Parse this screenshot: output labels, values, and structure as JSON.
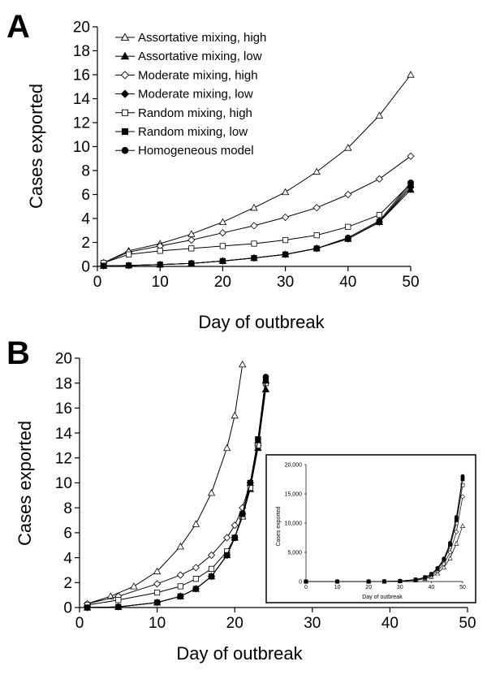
{
  "chart_data": [
    {
      "panel": "A",
      "type": "line",
      "xlabel": "Day of outbreak",
      "ylabel": "Cases exported",
      "xlim": [
        0,
        50
      ],
      "ylim": [
        0,
        20
      ],
      "xticks": [
        "0",
        "10",
        "20",
        "30",
        "40",
        "50"
      ],
      "yticks": [
        "0",
        "2",
        "4",
        "6",
        "8",
        "10",
        "12",
        "14",
        "16",
        "18",
        "20"
      ],
      "legend_position": "top-left",
      "grid": false,
      "series": [
        {
          "name": "Assortative mixing, high",
          "marker": "triangle-open",
          "x": [
            1,
            5,
            10,
            15,
            20,
            25,
            30,
            35,
            40,
            45,
            50
          ],
          "y": [
            0.3,
            1.3,
            1.9,
            2.7,
            3.7,
            4.9,
            6.2,
            7.9,
            9.9,
            12.6,
            16.0
          ]
        },
        {
          "name": "Assortative mixing, low",
          "marker": "triangle-filled",
          "x": [
            1,
            5,
            10,
            15,
            20,
            25,
            30,
            35,
            40,
            45,
            50
          ],
          "y": [
            0.05,
            0.08,
            0.15,
            0.25,
            0.45,
            0.7,
            1.0,
            1.5,
            2.3,
            3.7,
            6.4
          ]
        },
        {
          "name": "Moderate mixing, high",
          "marker": "diamond-open",
          "x": [
            1,
            5,
            10,
            15,
            20,
            25,
            30,
            35,
            40,
            45,
            50
          ],
          "y": [
            0.3,
            1.2,
            1.7,
            2.2,
            2.8,
            3.4,
            4.1,
            4.9,
            6.0,
            7.3,
            9.2
          ]
        },
        {
          "name": "Moderate mixing, low",
          "marker": "diamond-filled",
          "x": [
            1,
            5,
            10,
            15,
            20,
            25,
            30,
            35,
            40,
            45,
            50
          ],
          "y": [
            0.05,
            0.08,
            0.15,
            0.25,
            0.45,
            0.7,
            1.0,
            1.5,
            2.3,
            3.7,
            6.6
          ]
        },
        {
          "name": "Random mixing, high",
          "marker": "square-open",
          "x": [
            1,
            5,
            10,
            15,
            20,
            25,
            30,
            35,
            40,
            45,
            50
          ],
          "y": [
            0.3,
            1.0,
            1.3,
            1.5,
            1.7,
            1.9,
            2.2,
            2.6,
            3.3,
            4.3,
            6.9
          ]
        },
        {
          "name": "Random mixing, low",
          "marker": "square-filled",
          "x": [
            1,
            5,
            10,
            15,
            20,
            25,
            30,
            35,
            40,
            45,
            50
          ],
          "y": [
            0.05,
            0.08,
            0.15,
            0.25,
            0.45,
            0.7,
            1.0,
            1.5,
            2.3,
            3.7,
            6.8
          ]
        },
        {
          "name": "Homogeneous model",
          "marker": "circle-filled",
          "x": [
            1,
            5,
            10,
            15,
            20,
            25,
            30,
            35,
            40,
            45,
            50
          ],
          "y": [
            0.05,
            0.08,
            0.15,
            0.25,
            0.45,
            0.7,
            1.0,
            1.5,
            2.4,
            3.8,
            7.0
          ]
        }
      ]
    },
    {
      "panel": "B",
      "type": "line",
      "xlabel": "Day of outbreak",
      "ylabel": "Cases exported",
      "xlim": [
        0,
        50
      ],
      "ylim": [
        0,
        20
      ],
      "xticks": [
        "0",
        "10",
        "20",
        "30",
        "40",
        "50"
      ],
      "yticks": [
        "0",
        "2",
        "4",
        "6",
        "8",
        "10",
        "12",
        "14",
        "16",
        "18",
        "20"
      ],
      "grid": false,
      "series": [
        {
          "name": "Assortative mixing, high",
          "marker": "triangle-open",
          "x": [
            1,
            4,
            7,
            10,
            13,
            15,
            17,
            19,
            20,
            21
          ],
          "y": [
            0.3,
            0.9,
            1.7,
            2.9,
            4.9,
            6.7,
            9.2,
            12.8,
            15.4,
            19.5
          ]
        },
        {
          "name": "Assortative mixing, low",
          "marker": "triangle-filled",
          "x": [
            1,
            5,
            10,
            13,
            15,
            17,
            19,
            20,
            21,
            22,
            23,
            24
          ],
          "y": [
            0,
            0.05,
            0.4,
            0.9,
            1.5,
            2.5,
            4.2,
            5.6,
            7.3,
            9.5,
            12.8,
            17.5
          ]
        },
        {
          "name": "Moderate mixing, high",
          "marker": "diamond-open",
          "x": [
            1,
            5,
            10,
            13,
            15,
            17,
            19,
            20,
            21,
            22,
            23,
            24
          ],
          "y": [
            0.3,
            0.9,
            1.9,
            2.6,
            3.2,
            4.2,
            5.6,
            6.6,
            8.0,
            10.0,
            13.0,
            18.0
          ]
        },
        {
          "name": "Moderate mixing, low",
          "marker": "diamond-filled",
          "x": [
            1,
            5,
            10,
            13,
            15,
            17,
            19,
            20,
            21,
            22,
            23,
            24
          ],
          "y": [
            0,
            0.05,
            0.4,
            0.9,
            1.5,
            2.5,
            4.2,
            5.6,
            7.5,
            9.8,
            13.2,
            18.0
          ]
        },
        {
          "name": "Random mixing, high",
          "marker": "square-open",
          "x": [
            1,
            5,
            10,
            13,
            15,
            17,
            19,
            20,
            21,
            22,
            23,
            24
          ],
          "y": [
            0.2,
            0.6,
            1.2,
            1.7,
            2.3,
            3.1,
            4.5,
            5.6,
            7.3,
            9.6,
            13.0,
            18.0
          ]
        },
        {
          "name": "Random mixing, low",
          "marker": "square-filled",
          "x": [
            1,
            5,
            10,
            13,
            15,
            17,
            19,
            20,
            21,
            22,
            23,
            24
          ],
          "y": [
            0,
            0.05,
            0.4,
            0.9,
            1.5,
            2.5,
            4.2,
            5.6,
            7.5,
            10.0,
            13.5,
            18.2
          ]
        },
        {
          "name": "Homogeneous model",
          "marker": "circle-filled",
          "x": [
            1,
            5,
            10,
            13,
            15,
            17,
            19,
            20,
            21,
            22,
            23,
            24
          ],
          "y": [
            0,
            0.05,
            0.4,
            0.9,
            1.5,
            2.5,
            4.2,
            5.6,
            7.5,
            10.0,
            13.5,
            18.5
          ]
        }
      ],
      "inset": {
        "type": "line",
        "xlabel": "Day of outbreak",
        "ylabel": "Cases exported",
        "xlim": [
          0,
          50
        ],
        "ylim": [
          0,
          20000
        ],
        "xticks": [
          "0",
          "10",
          "20",
          "30",
          "40",
          "50"
        ],
        "yticks": [
          "0",
          "5,000",
          "10,000",
          "15,000",
          "20,000"
        ],
        "series": [
          {
            "name": "Assortative mixing, high",
            "marker": "triangle-open",
            "x": [
              0,
              10,
              20,
              25,
              30,
              35,
              38,
              40,
              42,
              44,
              46,
              48,
              50
            ],
            "y": [
              0,
              0,
              5,
              20,
              60,
              200,
              450,
              800,
              1400,
              2400,
              4000,
              6500,
              9500
            ]
          },
          {
            "name": "Moderate mixing, high",
            "marker": "diamond-open",
            "x": [
              0,
              10,
              20,
              25,
              30,
              35,
              38,
              40,
              42,
              44,
              46,
              48,
              50
            ],
            "y": [
              0,
              0,
              5,
              25,
              80,
              280,
              600,
              1000,
              1800,
              3000,
              5000,
              8500,
              14500
            ]
          },
          {
            "name": "Random mixing, high",
            "marker": "square-open",
            "x": [
              0,
              10,
              20,
              25,
              30,
              35,
              38,
              40,
              42,
              44,
              46,
              48,
              50
            ],
            "y": [
              0,
              0,
              5,
              25,
              90,
              320,
              700,
              1200,
              2100,
              3500,
              6000,
              10000,
              16500
            ]
          },
          {
            "name": "Random mixing, low",
            "marker": "square-filled",
            "x": [
              0,
              10,
              20,
              25,
              30,
              35,
              38,
              40,
              42,
              44,
              46,
              48,
              50
            ],
            "y": [
              0,
              0,
              5,
              25,
              90,
              330,
              720,
              1250,
              2200,
              3700,
              6300,
              10500,
              17500
            ]
          },
          {
            "name": "Homogeneous model",
            "marker": "circle-filled",
            "x": [
              0,
              10,
              20,
              25,
              30,
              35,
              38,
              40,
              42,
              44,
              46,
              48,
              50
            ],
            "y": [
              0,
              0,
              5,
              25,
              95,
              340,
              740,
              1300,
              2300,
              3900,
              6600,
              11000,
              18000
            ]
          }
        ]
      }
    }
  ]
}
